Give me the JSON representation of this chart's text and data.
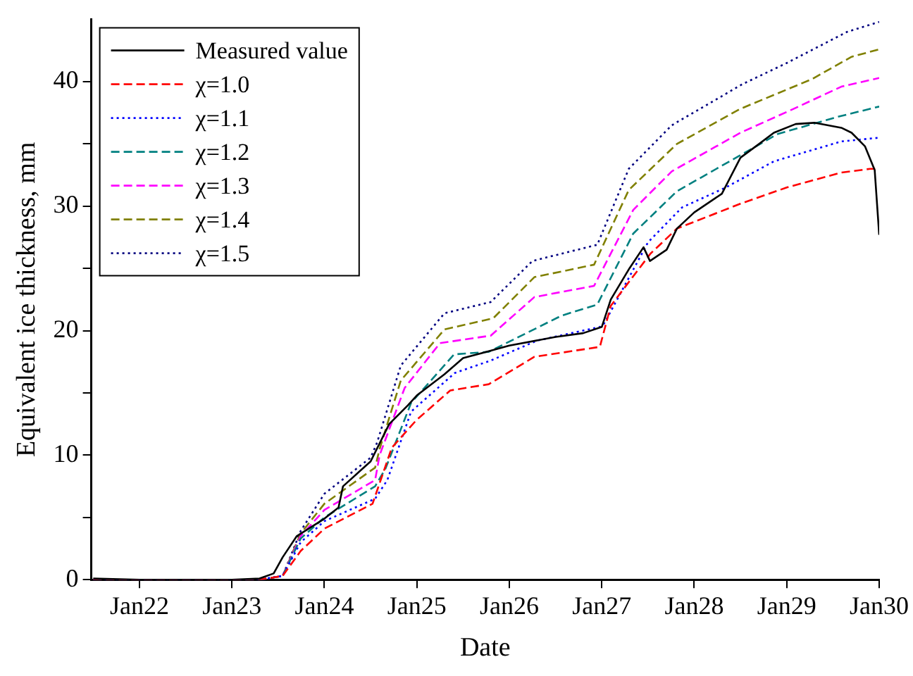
{
  "chart_data": {
    "type": "line",
    "xlabel": "Date",
    "ylabel": "Equivalent ice thickness, mm",
    "xlim": [
      "--01-21T11:30",
      "--01-30"
    ],
    "ylim": [
      0,
      45
    ],
    "xticks": [
      {
        "value": "--01-22",
        "label": "Jan22"
      },
      {
        "value": "--01-23",
        "label": "Jan23"
      },
      {
        "value": "--01-24",
        "label": "Jan24"
      },
      {
        "value": "--01-25",
        "label": "Jan25"
      },
      {
        "value": "--01-26",
        "label": "Jan26"
      },
      {
        "value": "--01-27",
        "label": "Jan27"
      },
      {
        "value": "--01-28",
        "label": "Jan28"
      },
      {
        "value": "--01-29",
        "label": "Jan29"
      },
      {
        "value": "--01-30",
        "label": "Jan30"
      }
    ],
    "yticks": [
      0,
      {
        "value": 5,
        "label": null
      },
      10,
      {
        "value": 15,
        "label": null
      },
      20,
      {
        "value": 25,
        "label": null
      },
      30,
      {
        "value": 35,
        "label": null
      },
      40
    ],
    "legend": "top left",
    "series": [
      {
        "name": "Measured value",
        "color": "#000000",
        "line_style": "solid",
        "x": [
          "--01-21T12:00",
          "--01-22",
          "--01-23",
          "--01-23T07:10",
          "--01-23T10:50",
          "--01-23T13:10",
          "--01-23T16:50",
          "--01-24",
          "--01-24T03:40",
          "--01-24T04:50",
          "--01-24T12:00",
          "--01-24T16:50",
          "--01-24T21:40",
          "--01-25",
          "--01-25T07:10",
          "--01-25T12:00",
          "--01-25T16:50",
          "--01-26",
          "--01-26T12:00",
          "--01-26T19:10",
          "--01-27",
          "--01-27T02:20",
          "--01-27T07:10",
          "--01-27T10:50",
          "--01-27T12:30",
          "--01-27T16:50",
          "--01-27T19:30",
          "--01-28",
          "--01-28T07:10",
          "--01-28T12:00",
          "--01-28T16:50",
          "--01-28T20:40",
          "--01-29T02:20",
          "--01-29T07:10",
          "--01-29T14:10",
          "--01-29T16:50",
          "--01-29T20:20",
          "--01-29T22:50",
          "--01-30"
        ],
        "values": [
          0.1,
          0,
          0,
          0.1,
          0.5,
          1.8,
          3.5,
          4.9,
          5.8,
          7.5,
          9.5,
          12.5,
          14,
          14.8,
          16.5,
          17.8,
          18.2,
          18.8,
          19.5,
          19.8,
          20.3,
          22.5,
          25,
          26.7,
          25.6,
          26.5,
          28.2,
          29.5,
          31,
          33.9,
          35,
          35.9,
          36.6,
          36.7,
          36.3,
          35.9,
          34.8,
          32.9,
          27.7
        ]
      },
      {
        "name": "χ=1.0",
        "color": "#ff0000",
        "line_style": "dashed",
        "x": [
          "--01-21T12:00",
          "--01-23T07:10",
          "--01-23T13:10",
          "--01-23T17:50",
          "--01-24",
          "--01-24T12:30",
          "--01-24T17:30",
          "--01-24T23:50",
          "--01-25T08:40",
          "--01-25T18:40",
          "--01-26T06:30",
          "--01-26T23:30",
          "--01-27T02:20",
          "--01-27T12:40",
          "--01-27T19:30",
          "--01-28T12:00",
          "--01-29",
          "--01-29T14:10",
          "--01-29T21:40",
          "--01-30"
        ],
        "values": [
          0,
          0,
          0.3,
          2.3,
          4.1,
          6.1,
          10.6,
          12.8,
          15.2,
          15.7,
          17.9,
          18.7,
          22,
          26.2,
          28.2,
          30.2,
          31.5,
          32.7,
          33,
          33
        ]
      },
      {
        "name": "χ=1.1",
        "color": "#0000ff",
        "line_style": "dotted",
        "x": [
          "--01-21T12:00",
          "--01-23T07:10",
          "--01-23T13:10",
          "--01-23T17:50",
          "--01-24",
          "--01-24T13:10",
          "--01-24T16:20",
          "--01-24T22:30",
          "--01-25T09:50",
          "--01-25T19:10",
          "--01-26T07:10",
          "--01-26T23:30",
          "--01-27T00:40",
          "--01-27T12:00",
          "--01-27T20:50",
          "--01-28T08:10",
          "--01-28T20:40",
          "--01-29T14:10",
          "--01-30"
        ],
        "values": [
          0,
          0,
          0.3,
          3,
          4.7,
          6.5,
          8.0,
          13.5,
          16.6,
          17.6,
          19.2,
          20.3,
          20.6,
          27.1,
          29.9,
          31.5,
          33.6,
          35.2,
          35.5
        ]
      },
      {
        "name": "χ=1.2",
        "color": "#008080",
        "line_style": "dashed",
        "x": [
          "--01-21T12:00",
          "--01-23T07:10",
          "--01-23T13:10",
          "--01-23T17:50",
          "--01-24",
          "--01-24T13:10",
          "--01-24T15:50",
          "--01-24T22:30",
          "--01-25T09:40",
          "--01-25T18:40",
          "--01-26T13:30",
          "--01-26T22:50",
          "--01-27T08:10",
          "--01-27T19:30",
          "--01-28T12:00",
          "--01-28T21:40",
          "--01-29T13:30",
          "--01-30"
        ],
        "values": [
          0,
          0,
          0.3,
          3.3,
          5.0,
          7.5,
          8.9,
          14.2,
          18.1,
          18.3,
          21.2,
          22.1,
          27.8,
          31.2,
          34.1,
          35.8,
          37.2,
          38.0
        ]
      },
      {
        "name": "χ=1.3",
        "color": "#ff00ff",
        "line_style": "dashed",
        "x": [
          "--01-21T12:00",
          "--01-23T07:10",
          "--01-23T13:10",
          "--01-23T17:50",
          "--01-24",
          "--01-24T13:10",
          "--01-24T14:20",
          "--01-24T20:50",
          "--01-25T06:00",
          "--01-25T19:10",
          "--01-26T06:30",
          "--01-26T22:00",
          "--01-27T08:10",
          "--01-27T18:10",
          "--01-28T12:00",
          "--01-29T01:40",
          "--01-29T14:10",
          "--01-30"
        ],
        "values": [
          0,
          0,
          0.3,
          3.5,
          5.6,
          8,
          10,
          15.4,
          19.0,
          19.6,
          22.7,
          23.6,
          29.7,
          32.8,
          35.9,
          37.8,
          39.6,
          40.3
        ]
      },
      {
        "name": "χ=1.4",
        "color": "#808000",
        "line_style": "dashed",
        "x": [
          "--01-21T12:00",
          "--01-23T07:10",
          "--01-23T13:10",
          "--01-23T17:50",
          "--01-24",
          "--01-24T13:10",
          "--01-24T14:20",
          "--01-24T19:50",
          "--01-25T07:10",
          "--01-25T19:50",
          "--01-26T06:30",
          "--01-26T22:00",
          "--01-27T07:00",
          "--01-27T19:30",
          "--01-28T11:50",
          "--01-29T06:30",
          "--01-29T16:50",
          "--01-30"
        ],
        "values": [
          0,
          0,
          0.3,
          3.7,
          6.1,
          9,
          10.5,
          16,
          20.1,
          21,
          24.3,
          25.3,
          31.3,
          35,
          37.8,
          40.2,
          42,
          42.6
        ]
      },
      {
        "name": "χ=1.5",
        "color": "#000080",
        "line_style": "dotted",
        "x": [
          "--01-21T12:00",
          "--01-23T07:10",
          "--01-23T13:10",
          "--01-23T17:50",
          "--01-24",
          "--01-24T12:00",
          "--01-24T13:40",
          "--01-24T19:50",
          "--01-25T07:10",
          "--01-25T19:10",
          "--01-26T06:00",
          "--01-26T22:50",
          "--01-27T07:00",
          "--01-27T18:10",
          "--01-28T12:30",
          "--01-29",
          "--01-29T15:40",
          "--01-30"
        ],
        "values": [
          0,
          0,
          0.3,
          3.9,
          6.9,
          9.8,
          11,
          17.2,
          21.4,
          22.3,
          25.6,
          26.9,
          33,
          36.5,
          39.8,
          41.5,
          44.0,
          44.8
        ]
      }
    ]
  }
}
